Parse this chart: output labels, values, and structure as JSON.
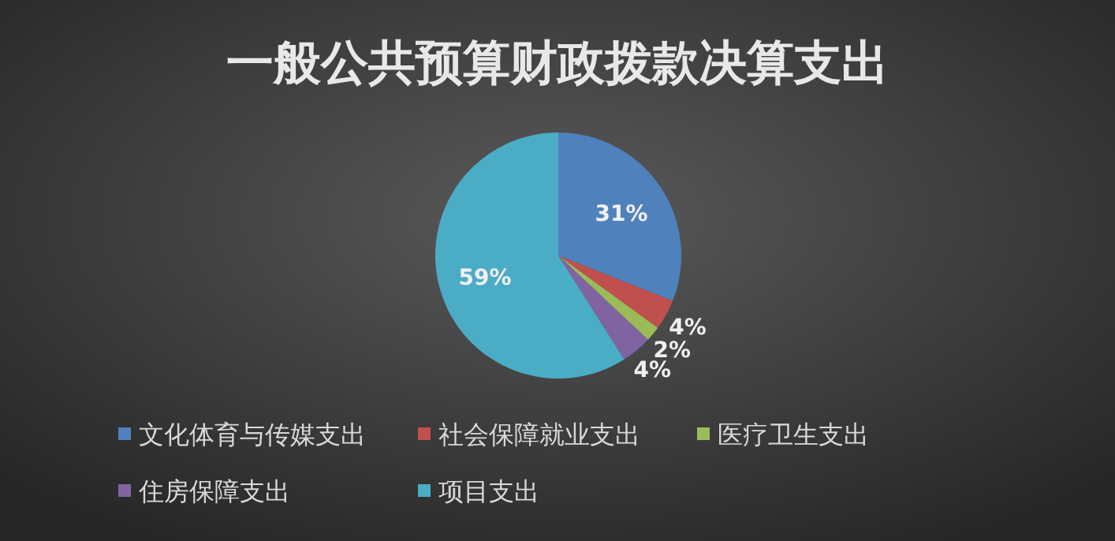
{
  "chart_data": {
    "type": "pie",
    "title": "一般公共预算财政拨款决算支出",
    "categories": [
      "文化体育与传媒支出",
      "社会保障就业支出",
      "医疗卫生支出",
      "住房保障支出",
      "项目支出"
    ],
    "values": [
      31,
      4,
      2,
      4,
      59
    ],
    "colors": [
      "#4f81bd",
      "#c0504d",
      "#9bbb59",
      "#8064a2",
      "#4bacc6"
    ],
    "value_labels": [
      "31%",
      "4%",
      "2%",
      "4%",
      "59%"
    ],
    "legend": "bottom"
  }
}
